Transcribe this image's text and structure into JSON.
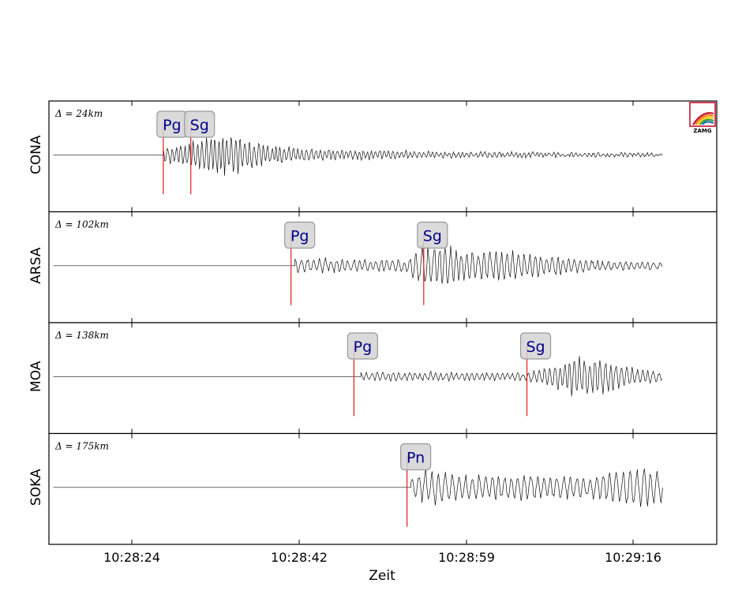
{
  "chart_data": {
    "type": "line",
    "xlabel": "Zeit",
    "x_ticks": [
      "10:28:24",
      "10:28:42",
      "10:28:59",
      "10:29:16"
    ],
    "logo": {
      "text": "ZAMG",
      "icon": "zamg-rainbow-logo"
    },
    "colors": {
      "trace": "#111111",
      "pick": "#e41a1c",
      "pick_text": "#00008b",
      "pick_box": "#d3d3d3"
    },
    "panels": [
      {
        "station": "CONA",
        "distance": "Δ = 24km",
        "signal": {
          "onset": 11.2,
          "end": 62.0,
          "peak": 29,
          "env": [
            [
              11.2,
              0.3
            ],
            [
              13,
              0.5
            ],
            [
              15,
              0.7
            ],
            [
              16.5,
              1.0
            ],
            [
              18.5,
              0.9
            ],
            [
              22,
              0.45
            ],
            [
              27,
              0.25
            ],
            [
              40,
              0.12
            ],
            [
              62,
              0.08
            ]
          ],
          "period": 0.45
        },
        "picks": [
          {
            "phase": "Pg",
            "t": 11.2
          },
          {
            "phase": "Sg",
            "t": 14.0
          }
        ]
      },
      {
        "station": "ARSA",
        "distance": "Δ = 102km",
        "signal": {
          "onset": 24.6,
          "end": 62.0,
          "peak": 29,
          "env": [
            [
              24.6,
              0.35
            ],
            [
              30,
              0.3
            ],
            [
              36,
              0.28
            ],
            [
              37.5,
              0.9
            ],
            [
              40,
              1.0
            ],
            [
              42,
              0.65
            ],
            [
              46,
              0.7
            ],
            [
              50,
              0.5
            ],
            [
              55,
              0.25
            ],
            [
              62,
              0.18
            ]
          ],
          "period": 0.6
        },
        "picks": [
          {
            "phase": "Pg",
            "t": 24.2
          },
          {
            "phase": "Sg",
            "t": 37.7
          }
        ]
      },
      {
        "station": "MOA",
        "distance": "Δ = 138km",
        "signal": {
          "onset": 31.3,
          "end": 62.0,
          "peak": 28,
          "env": [
            [
              31.3,
              0.2
            ],
            [
              38,
              0.2
            ],
            [
              48,
              0.18
            ],
            [
              49.5,
              0.35
            ],
            [
              53,
              0.95
            ],
            [
              56,
              0.85
            ],
            [
              59,
              0.4
            ],
            [
              62,
              0.2
            ]
          ],
          "period": 0.55
        },
        "picks": [
          {
            "phase": "Pg",
            "t": 30.6
          },
          {
            "phase": "Sg",
            "t": 48.2
          }
        ]
      },
      {
        "station": "SOKA",
        "distance": "Δ = 175km",
        "signal": {
          "onset": 36.4,
          "end": 62.0,
          "peak": 26,
          "env": [
            [
              36.4,
              0.5
            ],
            [
              38,
              1.0
            ],
            [
              41,
              0.7
            ],
            [
              50,
              0.6
            ],
            [
              55,
              0.55
            ],
            [
              58,
              0.9
            ],
            [
              60,
              1.0
            ],
            [
              62,
              0.8
            ]
          ],
          "period": 0.7
        },
        "picks": [
          {
            "phase": "Pn",
            "t": 36.0
          }
        ]
      }
    ]
  }
}
